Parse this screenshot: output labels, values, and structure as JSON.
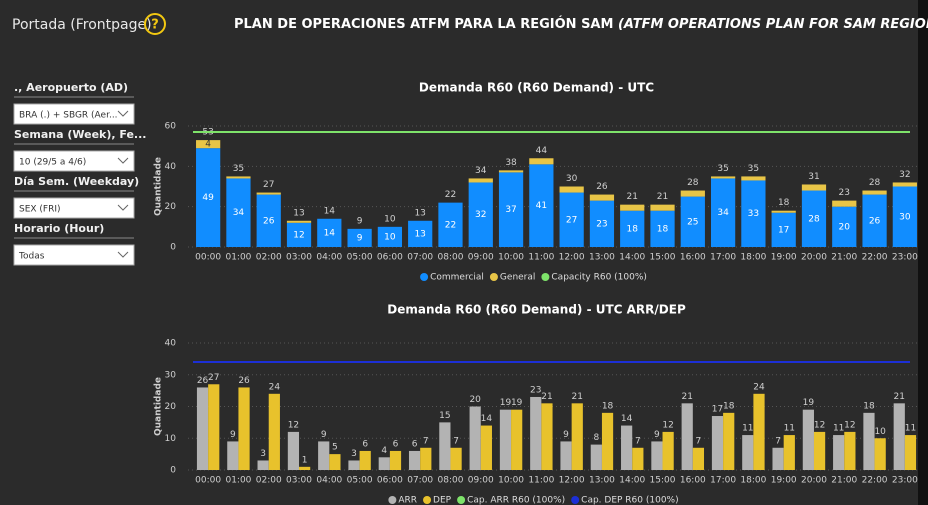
{
  "header": {
    "page_name": "Portada (Frontpage)",
    "title": "PLAN DE OPERACIONES ATFM PARA LA REGIÓN SAM ",
    "title_en": "(ATFM OPERATIONS PLAN FOR SAM REGION)"
  },
  "filters": [
    {
      "label": "., Aeropuerto (AD)",
      "value": "BRA (.) + SBGR (Aer..."
    },
    {
      "label": "Semana (Week), Fe...",
      "value": "10 (29/5 a 4/6)"
    },
    {
      "label": "Día Sem. (Weekday)",
      "value": "SEX (FRI)"
    },
    {
      "label": "Horario (Hour)",
      "value": "Todas"
    }
  ],
  "chart_data": [
    {
      "type": "stacked_bar",
      "title": "Demanda R60 (R60 Demand) - UTC",
      "y_label": "Quantidade",
      "categories": [
        "00:00",
        "01:00",
        "02:00",
        "03:00",
        "04:00",
        "05:00",
        "06:00",
        "07:00",
        "08:00",
        "09:00",
        "10:00",
        "11:00",
        "12:00",
        "13:00",
        "14:00",
        "15:00",
        "16:00",
        "17:00",
        "18:00",
        "19:00",
        "20:00",
        "21:00",
        "22:00",
        "23:00"
      ],
      "series": [
        {
          "name": "Commercial",
          "color": "#118dff",
          "values": [
            49,
            34,
            26,
            12,
            14,
            9,
            10,
            13,
            22,
            32,
            37,
            41,
            27,
            23,
            18,
            18,
            25,
            34,
            33,
            17,
            28,
            20,
            26,
            30
          ]
        },
        {
          "name": "General",
          "color": "#e8c547",
          "values": [
            4,
            1,
            1,
            1,
            0,
            0,
            0,
            0,
            0,
            2,
            1,
            3,
            3,
            3,
            3,
            3,
            3,
            1,
            2,
            1,
            3,
            3,
            2,
            2
          ],
          "value_labels": [
            "4",
            null,
            null,
            null,
            null,
            null,
            null,
            null,
            null,
            null,
            null,
            null,
            null,
            null,
            null,
            null,
            null,
            null,
            null,
            null,
            null,
            null,
            null,
            null
          ]
        }
      ],
      "totals": [
        53,
        35,
        27,
        13,
        14,
        9,
        10,
        13,
        22,
        34,
        38,
        44,
        30,
        26,
        21,
        21,
        28,
        35,
        35,
        18,
        31,
        23,
        28,
        32
      ],
      "reference_lines": [
        {
          "name": "Capacity R60 (100%)",
          "color": "#7ee36a",
          "value": 57
        }
      ],
      "ylim": [
        0,
        60
      ],
      "yticks": [
        0,
        20,
        40,
        60
      ],
      "grid": true
    },
    {
      "type": "grouped_bar",
      "title": "Demanda R60 (R60 Demand) - UTC ARR/DEP",
      "y_label": "Quantidade",
      "categories": [
        "00:00",
        "01:00",
        "02:00",
        "03:00",
        "04:00",
        "05:00",
        "06:00",
        "07:00",
        "08:00",
        "09:00",
        "10:00",
        "11:00",
        "12:00",
        "13:00",
        "14:00",
        "15:00",
        "16:00",
        "17:00",
        "18:00",
        "19:00",
        "20:00",
        "21:00",
        "22:00",
        "23:00"
      ],
      "series": [
        {
          "name": "ARR",
          "color": "#b3b3b3",
          "values": [
            26,
            9,
            3,
            12,
            9,
            3,
            4,
            6,
            15,
            20,
            19,
            23,
            9,
            8,
            14,
            9,
            21,
            17,
            11,
            7,
            19,
            11,
            18,
            21
          ]
        },
        {
          "name": "DEP",
          "color": "#e8c22c",
          "values": [
            27,
            26,
            24,
            1,
            5,
            6,
            6,
            7,
            7,
            14,
            19,
            21,
            21,
            18,
            7,
            12,
            7,
            18,
            24,
            11,
            12,
            12,
            10,
            11
          ]
        }
      ],
      "reference_lines": [
        {
          "name": "Cap. ARR R60 (100%)",
          "color": "#7ee36a",
          "value": 34
        },
        {
          "name": "Cap. DEP R60 (100%)",
          "color": "#1c2fd6",
          "value": 34
        }
      ],
      "ylim": [
        0,
        40
      ],
      "yticks": [
        0,
        10,
        20,
        30,
        40
      ],
      "grid": true
    }
  ]
}
